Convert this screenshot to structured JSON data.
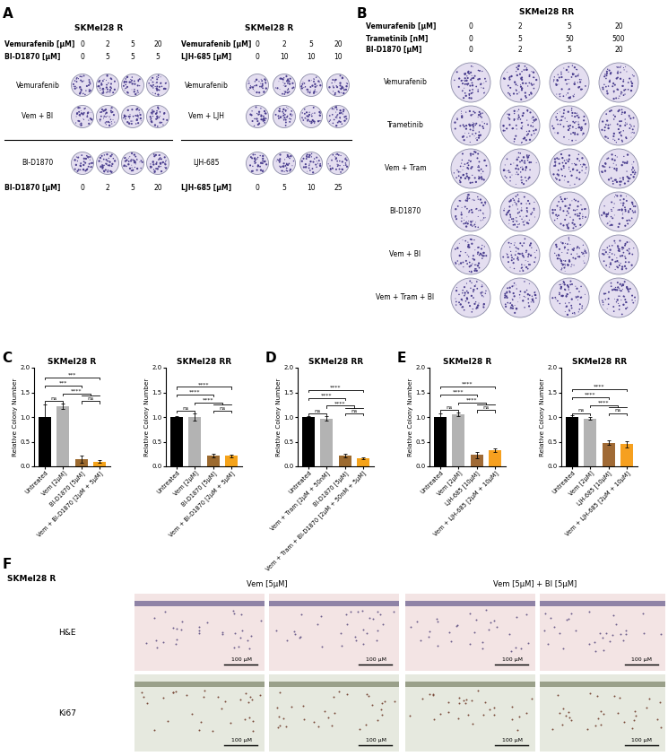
{
  "panels": {
    "A": {
      "letter": "A",
      "plates": [
        {
          "title": "SKMel28 R",
          "header": [
            {
              "label": "Vemurafenib [µM]",
              "values": [
                0,
                2,
                5,
                20
              ]
            },
            {
              "label": "BI-D1870 [µM]",
              "values": [
                0,
                5,
                5,
                5
              ]
            }
          ],
          "rows": [
            "Vemurafenib",
            "Vem + BI",
            "BI-D1870"
          ],
          "footer": {
            "label": "BI-D1870 [µM]",
            "values": [
              0,
              2,
              5,
              20
            ]
          }
        },
        {
          "title": "SKMel28 R",
          "header": [
            {
              "label": "Vemurafenib [µM]",
              "values": [
                0,
                2,
                5,
                20
              ]
            },
            {
              "label": "LJH-685 [µM]",
              "values": [
                0,
                10,
                10,
                10
              ]
            }
          ],
          "rows": [
            "Vemurafenib",
            "Vem + LJH",
            "LJH-685"
          ],
          "footer": {
            "label": "LJH-685 [µM]",
            "values": [
              0,
              5,
              10,
              25
            ]
          }
        }
      ]
    },
    "B": {
      "letter": "B",
      "plates": [
        {
          "title": "SKMel28 RR",
          "header": [
            {
              "label": "Vemurafenib [µM]",
              "values": [
                0,
                2,
                5,
                20
              ]
            },
            {
              "label": "Trametinib [nM]",
              "values": [
                0,
                5,
                50,
                500
              ]
            },
            {
              "label": "BI-D1870 [µM]",
              "values": [
                0,
                2,
                5,
                20
              ]
            }
          ],
          "rows": [
            "Vemurafenib",
            "Trametinib",
            "Vem + Tram",
            "BI-D1870",
            "Vem + BI",
            "Vem + Tram + BI"
          ]
        }
      ]
    },
    "F": {
      "letter": "F",
      "cell_line": "SKMel28 R",
      "columns": [
        "Vem [5µM]",
        "Vem [5µM] + BI [5µM]"
      ],
      "rows": [
        "H&E",
        "Ki67"
      ],
      "scale_bar": "100 µM"
    }
  },
  "chart_data": [
    {
      "panel": "C",
      "type": "bar",
      "title": "SKMel28 R",
      "y_label": "Relative Colony Number",
      "categories": [
        "Untreated",
        "Vem [2µM]",
        "BI-D1870 [5µM]",
        "Vem + BI-D1870 [2µM + 5µM]"
      ],
      "values": [
        1.0,
        1.22,
        0.15,
        0.1
      ],
      "errors": [
        0.25,
        0.05,
        0.07,
        0.02
      ],
      "colors": [
        "#000000",
        "#b3b3b3",
        "#9c6a2f",
        "#f5a31a"
      ],
      "ylim": [
        0.0,
        2.0
      ],
      "yticks": [
        0.0,
        0.5,
        1.0,
        1.5,
        2.0
      ],
      "significance": [
        {
          "from": 0,
          "to": 1,
          "label": "ns"
        },
        {
          "from": 2,
          "to": 3,
          "label": "ns"
        },
        {
          "from": 1,
          "to": [
            2,
            3
          ],
          "label": "****"
        },
        {
          "from": 0,
          "to": 2,
          "label": "***"
        },
        {
          "from": 0,
          "to": 3,
          "label": "***"
        }
      ]
    },
    {
      "type": "bar",
      "title": "SKMel28 RR",
      "y_label": "Relative Colony Number",
      "categories": [
        "Untreated",
        "Vem [2µM]",
        "BI-D1870 [5µM]",
        "Vem + BI-D1870 [2µM + 5µM]"
      ],
      "values": [
        1.0,
        1.0,
        0.22,
        0.21
      ],
      "errors": [
        0.02,
        0.08,
        0.04,
        0.02
      ],
      "colors": [
        "#000000",
        "#b3b3b3",
        "#9c6a2f",
        "#f5a31a"
      ],
      "ylim": [
        0.0,
        2.0
      ],
      "yticks": [
        0.0,
        0.5,
        1.0,
        1.5,
        2.0
      ],
      "significance": [
        {
          "from": 0,
          "to": 1,
          "label": "ns"
        },
        {
          "from": 2,
          "to": 3,
          "label": "ns"
        },
        {
          "from": 1,
          "to": [
            2,
            3
          ],
          "label": "****"
        },
        {
          "from": 0,
          "to": 2,
          "label": "****"
        },
        {
          "from": 0,
          "to": 3,
          "label": "****"
        }
      ]
    },
    {
      "panel": "D",
      "type": "bar",
      "title": "SKMel28 RR",
      "y_label": "Relative Colony Number",
      "categories": [
        "Untreated",
        "Vem + Tram [2µM + 50nM]",
        "BI-D1870 [5µM]",
        "Vem + Tram + BI-D1870 [2µM + 50nM + 5µM]"
      ],
      "values": [
        1.0,
        0.97,
        0.22,
        0.16
      ],
      "errors": [
        0.02,
        0.05,
        0.03,
        0.02
      ],
      "colors": [
        "#000000",
        "#b3b3b3",
        "#9c6a2f",
        "#f5a31a"
      ],
      "ylim": [
        0.0,
        2.0
      ],
      "yticks": [
        0.0,
        0.5,
        1.0,
        1.5,
        2.0
      ],
      "significance": [
        {
          "from": 0,
          "to": 1,
          "label": "ns"
        },
        {
          "from": 2,
          "to": 3,
          "label": "ns"
        },
        {
          "from": 1,
          "to": [
            2,
            3
          ],
          "label": "****"
        },
        {
          "from": 0,
          "to": 2,
          "label": "****"
        },
        {
          "from": 0,
          "to": 3,
          "label": "****"
        }
      ]
    },
    {
      "panel": "E",
      "type": "bar",
      "title": "SKMel28 R",
      "y_label": "Relative Colony Number",
      "categories": [
        "Untreated",
        "Vem [2µM]",
        "LJH-685 [10µM]",
        "Vem + LJH-685 [2µM + 10µM]"
      ],
      "values": [
        1.0,
        1.05,
        0.23,
        0.33
      ],
      "errors": [
        0.07,
        0.04,
        0.07,
        0.03
      ],
      "colors": [
        "#000000",
        "#b3b3b3",
        "#a06a35",
        "#f6a01f"
      ],
      "ylim": [
        0.0,
        2.0
      ],
      "yticks": [
        0.0,
        0.5,
        1.0,
        1.5,
        2.0
      ],
      "significance": [
        {
          "from": 0,
          "to": 1,
          "label": "ns"
        },
        {
          "from": 2,
          "to": 3,
          "label": "ns"
        },
        {
          "from": 1,
          "to": [
            2,
            3
          ],
          "label": "****"
        },
        {
          "from": 0,
          "to": 2,
          "label": "****"
        },
        {
          "from": 0,
          "to": 3,
          "label": "****"
        }
      ]
    },
    {
      "type": "bar",
      "title": "SKMel28 RR",
      "y_label": "Relative Colony Number",
      "categories": [
        "Untreated",
        "Vem [2µM]",
        "LJH-685 [10µM]",
        "Vem + LJH-685 [2µM + 10µM]"
      ],
      "values": [
        1.0,
        0.97,
        0.48,
        0.45
      ],
      "errors": [
        0.03,
        0.03,
        0.05,
        0.06
      ],
      "colors": [
        "#000000",
        "#b3b3b3",
        "#a06a35",
        "#f6a01f"
      ],
      "ylim": [
        0.0,
        2.0
      ],
      "yticks": [
        0.0,
        0.5,
        1.0,
        1.5,
        2.0
      ],
      "significance": [
        {
          "from": 0,
          "to": 1,
          "label": "ns"
        },
        {
          "from": 2,
          "to": 3,
          "label": "ns"
        },
        {
          "from": 1,
          "to": [
            2,
            3
          ],
          "label": "****"
        },
        {
          "from": 0,
          "to": 2,
          "label": "****"
        },
        {
          "from": 0,
          "to": 3,
          "label": "****"
        }
      ]
    }
  ]
}
